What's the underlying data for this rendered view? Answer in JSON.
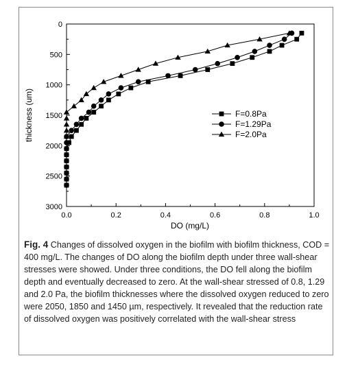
{
  "chart_data": {
    "type": "line",
    "xlabel": "DO (mg/L)",
    "ylabel": "thickness (um)",
    "xlim": [
      0.0,
      1.0
    ],
    "ylim": [
      0,
      3000
    ],
    "y_inverted": true,
    "x_ticks": [
      "0.0",
      "0.2",
      "0.4",
      "0.6",
      "0.8",
      "1.0"
    ],
    "y_ticks": [
      "0",
      "500",
      "1000",
      "1500",
      "2000",
      "2500",
      "3000"
    ],
    "legend_position": "middle-right",
    "grid": false,
    "series": [
      {
        "name": "F=0.8Pa",
        "marker": "square",
        "points": [
          [
            0.95,
            150
          ],
          [
            0.93,
            250
          ],
          [
            0.87,
            350
          ],
          [
            0.82,
            450
          ],
          [
            0.75,
            550
          ],
          [
            0.67,
            650
          ],
          [
            0.57,
            750
          ],
          [
            0.46,
            850
          ],
          [
            0.33,
            950
          ],
          [
            0.26,
            1050
          ],
          [
            0.21,
            1150
          ],
          [
            0.17,
            1250
          ],
          [
            0.14,
            1350
          ],
          [
            0.11,
            1450
          ],
          [
            0.08,
            1550
          ],
          [
            0.06,
            1650
          ],
          [
            0.04,
            1750
          ],
          [
            0.02,
            1850
          ],
          [
            0.01,
            1950
          ],
          [
            0.0,
            2050
          ],
          [
            0.0,
            2150
          ],
          [
            0.0,
            2250
          ],
          [
            0.0,
            2350
          ],
          [
            0.0,
            2450
          ],
          [
            0.0,
            2550
          ],
          [
            0.0,
            2650
          ]
        ]
      },
      {
        "name": "F=1.29Pa",
        "marker": "circle",
        "points": [
          [
            0.91,
            150
          ],
          [
            0.88,
            250
          ],
          [
            0.82,
            350
          ],
          [
            0.76,
            450
          ],
          [
            0.69,
            550
          ],
          [
            0.61,
            650
          ],
          [
            0.52,
            750
          ],
          [
            0.41,
            850
          ],
          [
            0.29,
            950
          ],
          [
            0.22,
            1050
          ],
          [
            0.17,
            1150
          ],
          [
            0.14,
            1250
          ],
          [
            0.11,
            1350
          ],
          [
            0.09,
            1450
          ],
          [
            0.06,
            1550
          ],
          [
            0.04,
            1650
          ],
          [
            0.02,
            1750
          ],
          [
            0.0,
            1850
          ],
          [
            0.0,
            1950
          ],
          [
            0.0,
            2050
          ],
          [
            0.0,
            2150
          ],
          [
            0.0,
            2250
          ],
          [
            0.0,
            2350
          ],
          [
            0.0,
            2450
          ],
          [
            0.0,
            2550
          ],
          [
            0.0,
            2650
          ]
        ]
      },
      {
        "name": "F=2.0Pa",
        "marker": "triangle",
        "points": [
          [
            0.9,
            150
          ],
          [
            0.78,
            250
          ],
          [
            0.65,
            350
          ],
          [
            0.57,
            450
          ],
          [
            0.45,
            550
          ],
          [
            0.36,
            650
          ],
          [
            0.29,
            750
          ],
          [
            0.22,
            850
          ],
          [
            0.15,
            950
          ],
          [
            0.11,
            1050
          ],
          [
            0.08,
            1150
          ],
          [
            0.06,
            1250
          ],
          [
            0.03,
            1350
          ],
          [
            0.0,
            1450
          ],
          [
            0.0,
            1550
          ],
          [
            0.0,
            1650
          ],
          [
            0.0,
            1750
          ],
          [
            0.0,
            1850
          ]
        ]
      }
    ]
  },
  "caption": {
    "label": "Fig. 4",
    "text": " Changes of dissolved oxygen in the biofilm with biofilm thickness, COD = 400 mg/L. The changes of DO along the biofilm depth under three wall-shear stresses were showed. Under three conditions, the DO fell along the biofilm depth and eventually decreased to zero. At the wall-shear stressed of 0.8, 1.29 and 2.0 Pa, the biofilm thicknesses where the dissolved oxygen reduced to zero were 2050, 1850 and 1450 µm, respectively. It revealed that the reduction rate of dissolved oxygen was positively correlated with the wall-shear stress"
  }
}
